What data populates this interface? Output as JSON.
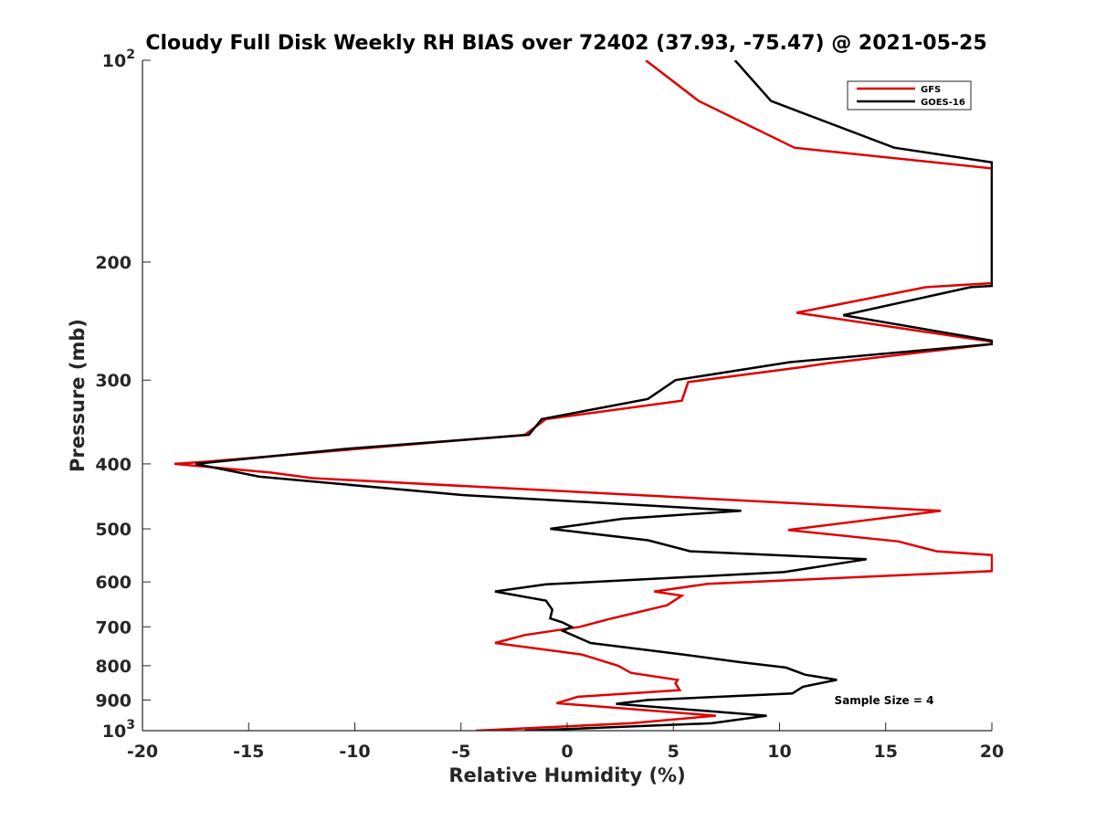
{
  "chart_data": {
    "type": "line",
    "title": "Cloudy Full Disk Weekly RH BIAS over 72402 (37.93, -75.47) @ 2021-05-25",
    "xlabel": "Relative Humidity (%)",
    "ylabel": "Pressure (mb)",
    "xlim": [
      -20,
      20
    ],
    "ylim": [
      100,
      1000
    ],
    "y_scale": "log",
    "y_reversed": true,
    "grid": false,
    "legend_position": "top-right",
    "x_ticks": [
      {
        "value": -20,
        "label": "-20"
      },
      {
        "value": -15,
        "label": "-15"
      },
      {
        "value": -10,
        "label": "-10"
      },
      {
        "value": -5,
        "label": "-5"
      },
      {
        "value": 0,
        "label": "0"
      },
      {
        "value": 5,
        "label": "5"
      },
      {
        "value": 10,
        "label": "10"
      },
      {
        "value": 15,
        "label": "15"
      },
      {
        "value": 20,
        "label": "20"
      }
    ],
    "y_ticks": [
      {
        "value": 100,
        "base": "10",
        "exp": "2"
      },
      {
        "value": 200,
        "label": "200"
      },
      {
        "value": 300,
        "label": "300"
      },
      {
        "value": 400,
        "label": "400"
      },
      {
        "value": 500,
        "label": "500"
      },
      {
        "value": 600,
        "label": "600"
      },
      {
        "value": 700,
        "label": "700"
      },
      {
        "value": 800,
        "label": "800"
      },
      {
        "value": 900,
        "label": "900"
      },
      {
        "value": 1000,
        "base": "10",
        "exp": "3"
      }
    ],
    "annotation": "Sample Size = 4",
    "series": [
      {
        "name": "GFS",
        "color": "#e00000",
        "points": [
          [
            3.7,
            100
          ],
          [
            6.2,
            115
          ],
          [
            10.7,
            135
          ],
          [
            20.0,
            145
          ],
          [
            20.0,
            215
          ],
          [
            16.9,
            218
          ],
          [
            10.8,
            238
          ],
          [
            20.0,
            263
          ],
          [
            20.0,
            265
          ],
          [
            12.3,
            283
          ],
          [
            11.0,
            287
          ],
          [
            5.7,
            302
          ],
          [
            5.4,
            322
          ],
          [
            -1.0,
            343
          ],
          [
            -2.0,
            362
          ],
          [
            -17.0,
            397
          ],
          [
            -18.5,
            400
          ],
          [
            -14.0,
            412
          ],
          [
            -12.0,
            420
          ],
          [
            17.6,
            470
          ],
          [
            10.4,
            502
          ],
          [
            15.6,
            522
          ],
          [
            17.4,
            540
          ],
          [
            20.0,
            547
          ],
          [
            20.0,
            578
          ],
          [
            6.6,
            604
          ],
          [
            4.1,
            620
          ],
          [
            5.4,
            629
          ],
          [
            4.7,
            650
          ],
          [
            2.1,
            680
          ],
          [
            0.6,
            700
          ],
          [
            -2.0,
            720
          ],
          [
            -3.4,
            740
          ],
          [
            0.7,
            770
          ],
          [
            2.4,
            800
          ],
          [
            3.0,
            820
          ],
          [
            5.2,
            840
          ],
          [
            5.1,
            850
          ],
          [
            5.2,
            860
          ],
          [
            5.3,
            870
          ],
          [
            0.5,
            890
          ],
          [
            -0.5,
            910
          ],
          [
            7.0,
            950
          ],
          [
            3.0,
            975
          ],
          [
            -4.3,
            1000
          ]
        ]
      },
      {
        "name": "GOES-16",
        "color": "#000000",
        "points": [
          [
            7.9,
            100
          ],
          [
            9.6,
            115
          ],
          [
            15.4,
            135
          ],
          [
            20.0,
            142
          ],
          [
            20.0,
            217
          ],
          [
            19.0,
            218
          ],
          [
            13.0,
            240
          ],
          [
            20.0,
            262
          ],
          [
            20.0,
            265
          ],
          [
            10.5,
            282
          ],
          [
            5.1,
            300
          ],
          [
            3.8,
            320
          ],
          [
            -1.2,
            343
          ],
          [
            -1.8,
            362
          ],
          [
            -10.5,
            380
          ],
          [
            -17.5,
            400
          ],
          [
            -14.5,
            418
          ],
          [
            -5.0,
            445
          ],
          [
            8.2,
            470
          ],
          [
            2.6,
            483
          ],
          [
            -0.8,
            500
          ],
          [
            3.8,
            520
          ],
          [
            5.8,
            540
          ],
          [
            14.1,
            555
          ],
          [
            10.2,
            580
          ],
          [
            -1.0,
            605
          ],
          [
            -3.4,
            620
          ],
          [
            -1.0,
            640
          ],
          [
            -0.7,
            660
          ],
          [
            -0.8,
            680
          ],
          [
            -0.2,
            690
          ],
          [
            0.2,
            700
          ],
          [
            -0.2,
            710
          ],
          [
            1.1,
            740
          ],
          [
            5.5,
            770
          ],
          [
            8.1,
            790
          ],
          [
            10.3,
            805
          ],
          [
            11.2,
            825
          ],
          [
            12.7,
            840
          ],
          [
            11.1,
            860
          ],
          [
            10.6,
            880
          ],
          [
            3.8,
            900
          ],
          [
            2.3,
            912
          ],
          [
            9.4,
            950
          ],
          [
            6.8,
            975
          ],
          [
            -2.0,
            1000
          ]
        ]
      }
    ]
  }
}
